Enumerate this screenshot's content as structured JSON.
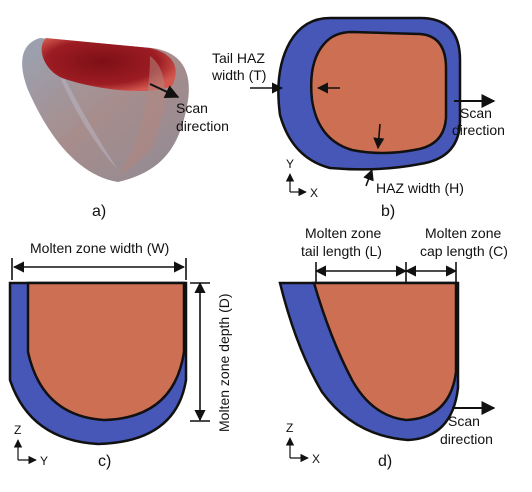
{
  "colors": {
    "molten": "#cd6f52",
    "haz": "#4657b8",
    "outline": "#111111",
    "render_dark_red": "#8c1a1f",
    "render_grey": "#9a8f94"
  },
  "panel_a": {
    "caption": "a)",
    "scan_label_1": "Scan",
    "scan_label_2": "direction"
  },
  "panel_b": {
    "caption": "b)",
    "tail_haz_1": "Tail HAZ",
    "tail_haz_2": "width (T)",
    "scan_label_1": "Scan",
    "scan_label_2": "direction",
    "haz_width": "HAZ width (H)",
    "axis_v": "Y",
    "axis_h": "X"
  },
  "panel_c": {
    "caption": "c)",
    "width_label": "Molten zone width (W)",
    "depth_label": "Molten zone depth (D)",
    "axis_v": "Z",
    "axis_h": "Y"
  },
  "panel_d": {
    "caption": "d)",
    "tail_1": "Molten zone",
    "tail_2": "tail length (L)",
    "cap_1": "Molten zone",
    "cap_2": "cap length (C)",
    "scan_label_1": "Scan",
    "scan_label_2": "direction",
    "axis_v": "Z",
    "axis_h": "X"
  }
}
